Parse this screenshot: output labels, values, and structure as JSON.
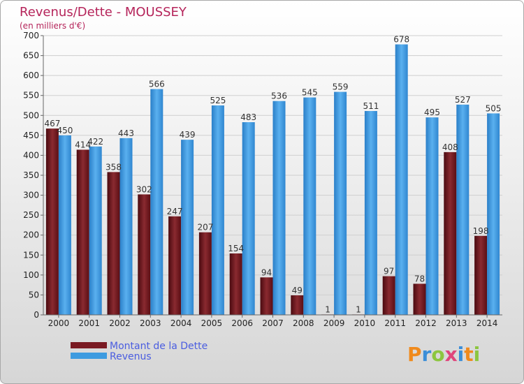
{
  "chart_data": {
    "type": "bar",
    "title": "Revenus/Dette - MOUSSEY",
    "subtitle": "(en milliers d'€)",
    "categories": [
      "2000",
      "2001",
      "2002",
      "2003",
      "2004",
      "2005",
      "2006",
      "2007",
      "2008",
      "2009",
      "2010",
      "2011",
      "2012",
      "2013",
      "2014"
    ],
    "series": [
      {
        "name": "Montant de la Dette",
        "color": "#7a1a22",
        "values": [
          467,
          414,
          358,
          302,
          247,
          207,
          154,
          94,
          49,
          1,
          1,
          97,
          78,
          408,
          198
        ]
      },
      {
        "name": "Revenus",
        "color": "#3d9be0",
        "values": [
          450,
          422,
          443,
          566,
          439,
          525,
          483,
          536,
          545,
          559,
          511,
          678,
          495,
          527,
          505
        ]
      }
    ],
    "ylim": [
      0,
      700
    ],
    "yticks": [
      0,
      50,
      100,
      150,
      200,
      250,
      300,
      350,
      400,
      450,
      500,
      550,
      600,
      650,
      700
    ],
    "grid": true,
    "legend_position": "bottom-left"
  },
  "logo": {
    "letters": [
      "P",
      "r",
      "o",
      "x",
      "i",
      "t",
      "i"
    ],
    "colors": [
      "#f08a1c",
      "#3b8ed8",
      "#8cc63f",
      "#e0457b",
      "#3b8ed8",
      "#f08a1c",
      "#8cc63f"
    ]
  }
}
